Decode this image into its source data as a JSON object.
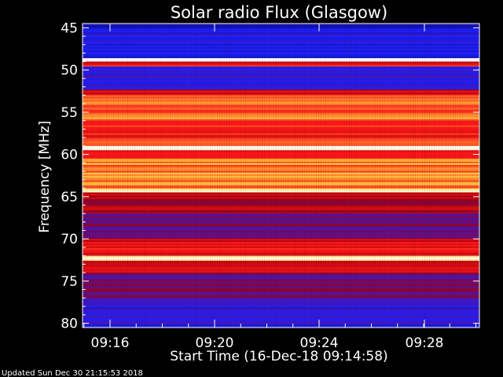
{
  "chart_data": {
    "type": "heatmap",
    "title": "Solar radio Flux (Glasgow)",
    "xlabel": "Start Time (16-Dec-18 09:14:58)",
    "ylabel": "Frequency [MHz]",
    "ylim": [
      44.5,
      80.5
    ],
    "y_ticks": [
      45,
      50,
      55,
      60,
      65,
      70,
      75,
      80
    ],
    "x_ticks": [
      "09:16",
      "09:20",
      "09:24",
      "09:28"
    ],
    "colormap": [
      "#1010a0",
      "#2020ff",
      "#a00010",
      "#ff1818",
      "#ffd040",
      "#ffffff"
    ],
    "bands": [
      {
        "f0": 44.5,
        "f1": 45.0,
        "level": 0.05
      },
      {
        "f0": 45.0,
        "f1": 48.6,
        "level": 0.18
      },
      {
        "f0": 48.6,
        "f1": 49.0,
        "level": 1.0
      },
      {
        "f0": 49.0,
        "f1": 49.6,
        "level": 0.55
      },
      {
        "f0": 49.6,
        "f1": 52.3,
        "level": 0.22
      },
      {
        "f0": 52.3,
        "f1": 53.0,
        "level": 0.5
      },
      {
        "f0": 53.0,
        "f1": 56.0,
        "level": 0.7
      },
      {
        "f0": 56.0,
        "f1": 59.0,
        "level": 0.6
      },
      {
        "f0": 59.0,
        "f1": 59.5,
        "level": 0.95
      },
      {
        "f0": 59.5,
        "f1": 60.5,
        "level": 0.62
      },
      {
        "f0": 60.5,
        "f1": 64.0,
        "level": 0.72
      },
      {
        "f0": 64.0,
        "f1": 64.5,
        "level": 0.9
      },
      {
        "f0": 64.5,
        "f1": 67.0,
        "level": 0.45
      },
      {
        "f0": 67.0,
        "f1": 70.0,
        "level": 0.35
      },
      {
        "f0": 70.0,
        "f1": 72.0,
        "level": 0.55
      },
      {
        "f0": 72.0,
        "f1": 72.6,
        "level": 0.95
      },
      {
        "f0": 72.6,
        "f1": 74.0,
        "level": 0.55
      },
      {
        "f0": 74.0,
        "f1": 77.0,
        "level": 0.3
      },
      {
        "f0": 77.0,
        "f1": 80.5,
        "level": 0.2
      }
    ]
  },
  "footer_text": "Updated Sun Dec 30 21:15:53 2018"
}
